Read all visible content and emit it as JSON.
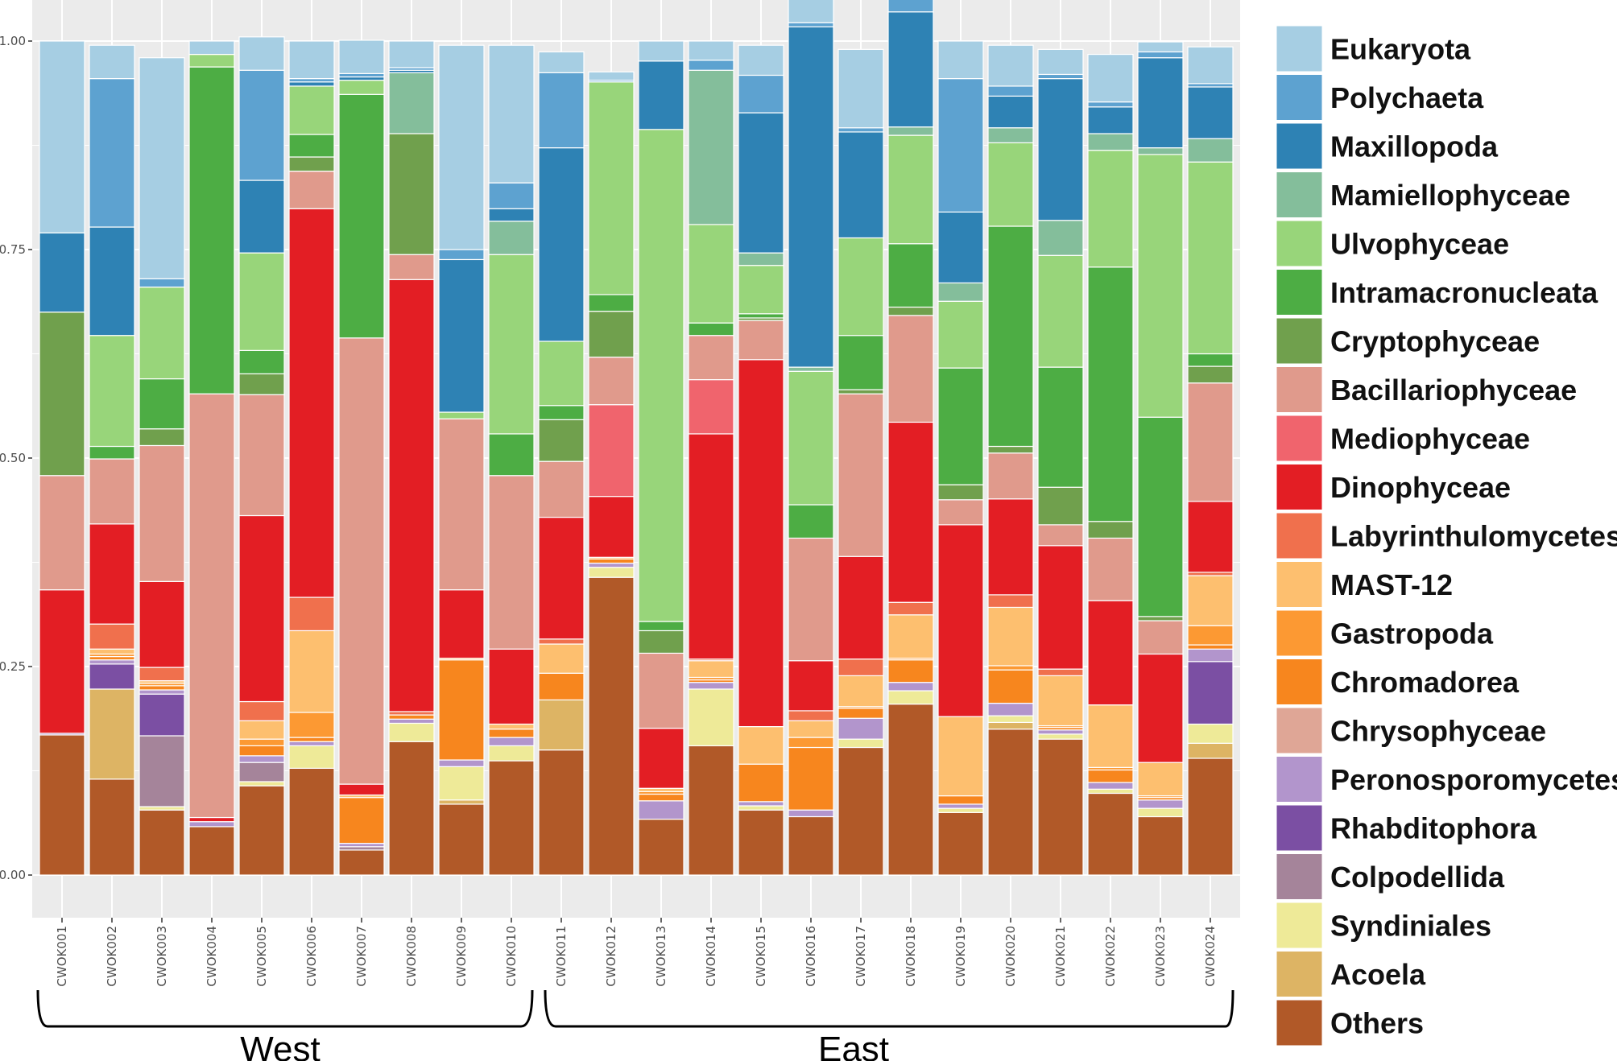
{
  "chart_data": {
    "type": "bar",
    "stacked": true,
    "title": "",
    "xlabel": "",
    "ylabel": "",
    "ylim": [
      0,
      1
    ],
    "yticks": [
      "0.00",
      "0.25",
      "0.50",
      "0.75",
      "1.00"
    ],
    "grid": true,
    "legend_position": "right",
    "categories": [
      "CWOK001",
      "CWOK002",
      "CWOK003",
      "CWOK004",
      "CWOK005",
      "CWOK006",
      "CWOK007",
      "CWOK008",
      "CWOK009",
      "CWOK010",
      "CWOK011",
      "CWOK012",
      "CWOK013",
      "CWOK014",
      "CWOK015",
      "CWOK016",
      "CWOK017",
      "CWOK018",
      "CWOK019",
      "CWOK020",
      "CWOK021",
      "CWOK022",
      "CWOK023",
      "CWOK024"
    ],
    "groups": [
      {
        "label": "West",
        "from": "CWOK001",
        "to": "CWOK010"
      },
      {
        "label": "East",
        "from": "CWOK011",
        "to": "CWOK024"
      }
    ],
    "series": [
      {
        "name": "Others",
        "color": "#B15928",
        "values": [
          0.168,
          0.115,
          0.078,
          0.058,
          0.107,
          0.128,
          0.03,
          0.16,
          0.085,
          0.137,
          0.15,
          0.357,
          0.067,
          0.155,
          0.078,
          0.07,
          0.153,
          0.205,
          0.075,
          0.175,
          0.163,
          0.098,
          0.07,
          0.14
        ]
      },
      {
        "name": "Acoela",
        "color": "#DDB464",
        "values": [
          0,
          0.108,
          0,
          0,
          0,
          0,
          0,
          0,
          0.005,
          0,
          0.06,
          0,
          0,
          0,
          0,
          0,
          0,
          0,
          0,
          0.008,
          0,
          0,
          0,
          0.018
        ]
      },
      {
        "name": "Syndiniales",
        "color": "#EEEA98",
        "values": [
          0,
          0,
          0.004,
          0,
          0.005,
          0.027,
          0,
          0.022,
          0.04,
          0.018,
          0,
          0.012,
          0,
          0.068,
          0.005,
          0,
          0.01,
          0.016,
          0.005,
          0.008,
          0.006,
          0.005,
          0.01,
          0.023
        ]
      },
      {
        "name": "Colpodellida",
        "color": "#A5849A",
        "values": [
          0,
          0,
          0.085,
          0,
          0.023,
          0,
          0.004,
          0,
          0,
          0,
          0,
          0,
          0,
          0,
          0,
          0,
          0,
          0,
          0,
          0,
          0,
          0,
          0,
          0
        ]
      },
      {
        "name": "Rhabditophora",
        "color": "#7B4FA3",
        "values": [
          0,
          0.03,
          0.05,
          0,
          0,
          0,
          0,
          0,
          0,
          0,
          0,
          0,
          0,
          0,
          0,
          0,
          0,
          0,
          0,
          0,
          0,
          0,
          0,
          0.075
        ]
      },
      {
        "name": "Peronosporomycetes",
        "color": "#B295CC",
        "values": [
          0.002,
          0.005,
          0.005,
          0.006,
          0.008,
          0.005,
          0.004,
          0.005,
          0.008,
          0.01,
          0,
          0.005,
          0.022,
          0.008,
          0.005,
          0.008,
          0.025,
          0.01,
          0.005,
          0.015,
          0.005,
          0.008,
          0.01,
          0.015
        ]
      },
      {
        "name": "Chrysophyceae",
        "color": "#DFA696",
        "values": [
          0,
          0,
          0,
          0,
          0,
          0,
          0,
          0,
          0,
          0,
          0,
          0,
          0,
          0,
          0,
          0,
          0,
          0,
          0,
          0,
          0,
          0,
          0,
          0
        ]
      },
      {
        "name": "Chromadorea",
        "color": "#F7861E",
        "values": [
          0,
          0.004,
          0.005,
          0,
          0.012,
          0.005,
          0.055,
          0.005,
          0.12,
          0.01,
          0.032,
          0.005,
          0.008,
          0.003,
          0.045,
          0.075,
          0.012,
          0.027,
          0.01,
          0.04,
          0.003,
          0.015,
          0.003,
          0.005
        ]
      },
      {
        "name": "Gastropoda",
        "color": "#FC9933",
        "values": [
          0,
          0.003,
          0.003,
          0,
          0.008,
          0.03,
          0,
          0,
          0,
          0,
          0,
          0,
          0.003,
          0.003,
          0,
          0.012,
          0.002,
          0.002,
          0,
          0.005,
          0.002,
          0.003,
          0.002,
          0.023
        ]
      },
      {
        "name": "MAST-12",
        "color": "#FDBF6F",
        "values": [
          0,
          0.006,
          0.003,
          0,
          0.022,
          0.098,
          0.003,
          0,
          0.002,
          0.006,
          0.035,
          0.002,
          0.004,
          0.02,
          0.045,
          0.02,
          0.037,
          0.052,
          0.095,
          0.07,
          0.06,
          0.075,
          0.04,
          0.06
        ]
      },
      {
        "name": "Labyrinthulomycetes",
        "color": "#F0704D",
        "values": [
          0,
          0.03,
          0.016,
          0,
          0.023,
          0.04,
          0,
          0.004,
          0,
          0,
          0.006,
          0,
          0,
          0.002,
          0,
          0.012,
          0.02,
          0.015,
          0,
          0.015,
          0.008,
          0,
          0,
          0.004
        ]
      },
      {
        "name": "Dinophyceae",
        "color": "#E31E24",
        "values": [
          0.172,
          0.12,
          0.103,
          0.005,
          0.223,
          0.466,
          0.013,
          0.518,
          0.082,
          0.09,
          0.146,
          0.073,
          0.072,
          0.27,
          0.44,
          0.06,
          0.123,
          0.216,
          0.23,
          0.115,
          0.148,
          0.125,
          0.13,
          0.085
        ]
      },
      {
        "name": "Mediophyceae",
        "color": "#F0646D",
        "values": [
          0,
          0,
          0,
          0,
          0,
          0,
          0,
          0,
          0,
          0,
          0,
          0.11,
          0,
          0.065,
          0,
          0,
          0,
          0,
          0,
          0,
          0,
          0,
          0,
          0
        ]
      },
      {
        "name": "Bacillariophyceae",
        "color": "#E09A8C",
        "values": [
          0.137,
          0.078,
          0.163,
          0.508,
          0.145,
          0.045,
          0.535,
          0.03,
          0.205,
          0.208,
          0.067,
          0.057,
          0.09,
          0.053,
          0.047,
          0.147,
          0.195,
          0.128,
          0.03,
          0.055,
          0.025,
          0.075,
          0.04,
          0.142
        ]
      },
      {
        "name": "Cryptophyceae",
        "color": "#70A04D",
        "values": [
          0.196,
          0,
          0.02,
          0,
          0.025,
          0.017,
          0,
          0.145,
          0,
          0,
          0.05,
          0.055,
          0.027,
          0,
          0.003,
          0,
          0.005,
          0.01,
          0.018,
          0.008,
          0.045,
          0.02,
          0.005,
          0.02
        ]
      },
      {
        "name": "Intramacronucleata",
        "color": "#4DAD44",
        "values": [
          0,
          0.015,
          0.06,
          0.392,
          0.028,
          0.027,
          0.292,
          0,
          0,
          0.05,
          0.017,
          0.02,
          0.011,
          0.015,
          0.005,
          0.04,
          0.065,
          0.076,
          0.14,
          0.264,
          0.144,
          0.305,
          0.239,
          0.015
        ]
      },
      {
        "name": "Ulvophyceae",
        "color": "#98D57A",
        "values": [
          0,
          0.133,
          0.11,
          0.015,
          0.117,
          0.058,
          0.017,
          0,
          0.008,
          0.215,
          0.077,
          0.255,
          0.59,
          0.118,
          0.058,
          0.16,
          0.117,
          0.13,
          0.08,
          0.1,
          0.134,
          0.14,
          0.315,
          0.23
        ]
      },
      {
        "name": "Mamiellophyceae",
        "color": "#84BE9B",
        "values": [
          0,
          0,
          0,
          0,
          0,
          0,
          0,
          0.073,
          0,
          0.04,
          0,
          0,
          0,
          0.185,
          0.015,
          0.005,
          0,
          0.01,
          0.022,
          0.018,
          0.042,
          0.02,
          0.008,
          0.028
        ]
      },
      {
        "name": "Maxillopoda",
        "color": "#2E82B4",
        "values": [
          0.095,
          0.13,
          0,
          0,
          0.087,
          0.005,
          0.004,
          0.003,
          0.183,
          0.015,
          0.232,
          0,
          0.082,
          0,
          0.168,
          0.408,
          0.127,
          0.138,
          0.085,
          0.038,
          0.17,
          0.032,
          0.108,
          0.062
        ]
      },
      {
        "name": "Polychaeta",
        "color": "#5DA2D0",
        "values": [
          0,
          0.178,
          0.01,
          0,
          0.132,
          0.004,
          0.004,
          0.003,
          0.012,
          0.031,
          0.09,
          0.002,
          0,
          0.012,
          0.045,
          0.005,
          0.005,
          0.038,
          0.16,
          0.012,
          0.005,
          0.006,
          0.007,
          0.004
        ]
      },
      {
        "name": "Eukaryota",
        "color": "#A6CEE3",
        "values": [
          0.23,
          0.04,
          0.265,
          0.016,
          0.04,
          0.045,
          0.04,
          0.032,
          0.245,
          0.165,
          0.025,
          0.01,
          0.024,
          0.023,
          0.036,
          0.03,
          0.094,
          0.034,
          0.045,
          0.049,
          0.03,
          0.057,
          0.012,
          0.044
        ]
      }
    ]
  }
}
